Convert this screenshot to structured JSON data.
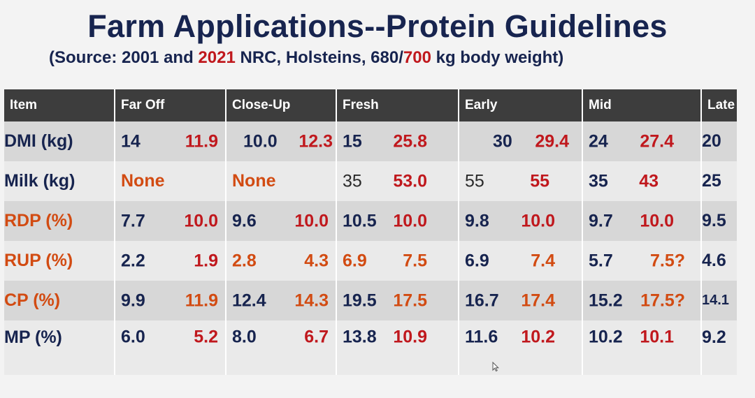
{
  "header": {
    "title": "Farm Applications--Protein Guidelines",
    "subtitle_prefix": "(Source:  2001 and ",
    "subtitle_year_red": "2021",
    "subtitle_mid": " NRC, Holsteins, 680/",
    "subtitle_weight_red": "700",
    "subtitle_suffix": " kg body weight)"
  },
  "table": {
    "columns": [
      "Item",
      "Far Off",
      "Close-Up",
      "Fresh",
      "Early",
      "Mid",
      "Late"
    ],
    "rows": [
      {
        "item": "DMI (kg)",
        "far_off": {
          "v2001": "14",
          "v2021": "11.9"
        },
        "close_up": {
          "v2001": "10.0",
          "v2021": "12.3"
        },
        "fresh": {
          "v2001": "15",
          "v2021": "25.8"
        },
        "early": {
          "v2001": "30",
          "v2021": "29.4"
        },
        "mid": {
          "v2001": "24",
          "v2021": "27.4"
        },
        "late": "20"
      },
      {
        "item": "Milk (kg)",
        "far_off": {
          "text": "None"
        },
        "close_up": {
          "text": "None"
        },
        "fresh": {
          "v2001": "35",
          "v2021": "53.0"
        },
        "early": {
          "v2001": "55",
          "v2021": "55"
        },
        "mid": {
          "v2001": "35",
          "v2021": "43"
        },
        "late": "25"
      },
      {
        "item": "RDP (%)",
        "far_off": {
          "v2001": "7.7",
          "v2021": "10.0"
        },
        "close_up": {
          "v2001": "9.6",
          "v2021": "10.0"
        },
        "fresh": {
          "v2001": "10.5",
          "v2021": "10.0"
        },
        "early": {
          "v2001": "9.8",
          "v2021": "10.0"
        },
        "mid": {
          "v2001": "9.7",
          "v2021": "10.0"
        },
        "late": "9.5"
      },
      {
        "item": "RUP (%)",
        "far_off": {
          "v2001": "2.2",
          "v2021": "1.9"
        },
        "close_up": {
          "v2001": "2.8",
          "v2021": "4.3"
        },
        "fresh": {
          "v2001": "6.9",
          "v2021": "7.5"
        },
        "early": {
          "v2001": "6.9",
          "v2021": "7.4"
        },
        "mid": {
          "v2001": "5.7",
          "v2021": "7.5?"
        },
        "late": "4.6"
      },
      {
        "item": "CP (%)",
        "far_off": {
          "v2001": "9.9",
          "v2021": "11.9"
        },
        "close_up": {
          "v2001": "12.4",
          "v2021": "14.3"
        },
        "fresh": {
          "v2001": "19.5",
          "v2021": "17.5"
        },
        "early": {
          "v2001": "16.7",
          "v2021": "17.4"
        },
        "mid": {
          "v2001": "15.2",
          "v2021": "17.5?"
        },
        "late": "14.1"
      },
      {
        "item": "MP (%)",
        "far_off": {
          "v2001": "6.0",
          "v2021": "5.2"
        },
        "close_up": {
          "v2001": "8.0",
          "v2021": "6.7"
        },
        "fresh": {
          "v2001": "13.8",
          "v2021": "10.9"
        },
        "early": {
          "v2001": "11.6",
          "v2021": "10.2"
        },
        "mid": {
          "v2001": "10.2",
          "v2021": "10.1"
        },
        "late": "9.2"
      }
    ]
  },
  "colors": {
    "title_navy": "#17244f",
    "accent_red": "#c0181d",
    "accent_orange": "#d24b12",
    "header_dark": "#3d3d3d",
    "row_dark": "#d7d7d7",
    "row_light": "#eaeaea"
  },
  "icons": {
    "cursor": "mouse-pointer-icon"
  }
}
